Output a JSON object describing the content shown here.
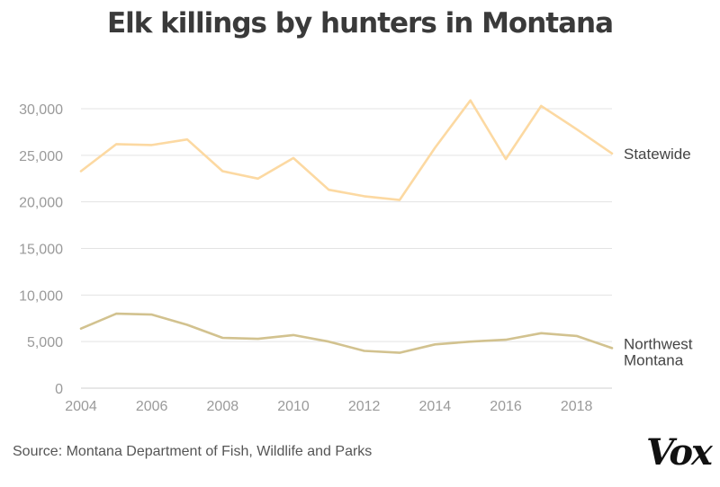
{
  "colors": {
    "statewide": "#fcd9a2",
    "northwest": "#d2c28f",
    "grid": "#e3e3e3",
    "baseline": "#cfcfcf"
  },
  "footer": {
    "source": "Source: Montana Department of Fish, Wildlife and Parks",
    "logo_text": "Vox"
  },
  "chart_data": {
    "type": "line",
    "title": "Elk killings by hunters in Montana",
    "x": [
      2004,
      2005,
      2006,
      2007,
      2008,
      2009,
      2010,
      2011,
      2012,
      2013,
      2014,
      2015,
      2016,
      2017,
      2018,
      2019
    ],
    "series": [
      {
        "name": "Statewide",
        "values": [
          23300,
          26200,
          26100,
          26700,
          23300,
          22500,
          24700,
          21300,
          20600,
          20200,
          25800,
          30900,
          24600,
          30300,
          27800,
          25200
        ]
      },
      {
        "name": "Northwest Montana",
        "label_lines": [
          "Northwest",
          "Montana"
        ],
        "values": [
          6400,
          8000,
          7900,
          6800,
          5400,
          5300,
          5700,
          5000,
          4000,
          3800,
          4700,
          5000,
          5200,
          5900,
          5600,
          4300
        ]
      }
    ],
    "xticks": [
      2004,
      2006,
      2008,
      2010,
      2012,
      2014,
      2016,
      2018
    ],
    "xtick_labels": [
      "2004",
      "2006",
      "2008",
      "2010",
      "2012",
      "2014",
      "2016",
      "2018"
    ],
    "yticks": [
      0,
      5000,
      10000,
      15000,
      20000,
      25000,
      30000
    ],
    "ytick_labels": [
      "0",
      "5,000",
      "10,000",
      "15,000",
      "20,000",
      "25,000",
      "30,000"
    ],
    "xlim": [
      2004,
      2019
    ],
    "ylim": [
      0,
      30000
    ],
    "grid": true,
    "legend": "inline-right"
  }
}
